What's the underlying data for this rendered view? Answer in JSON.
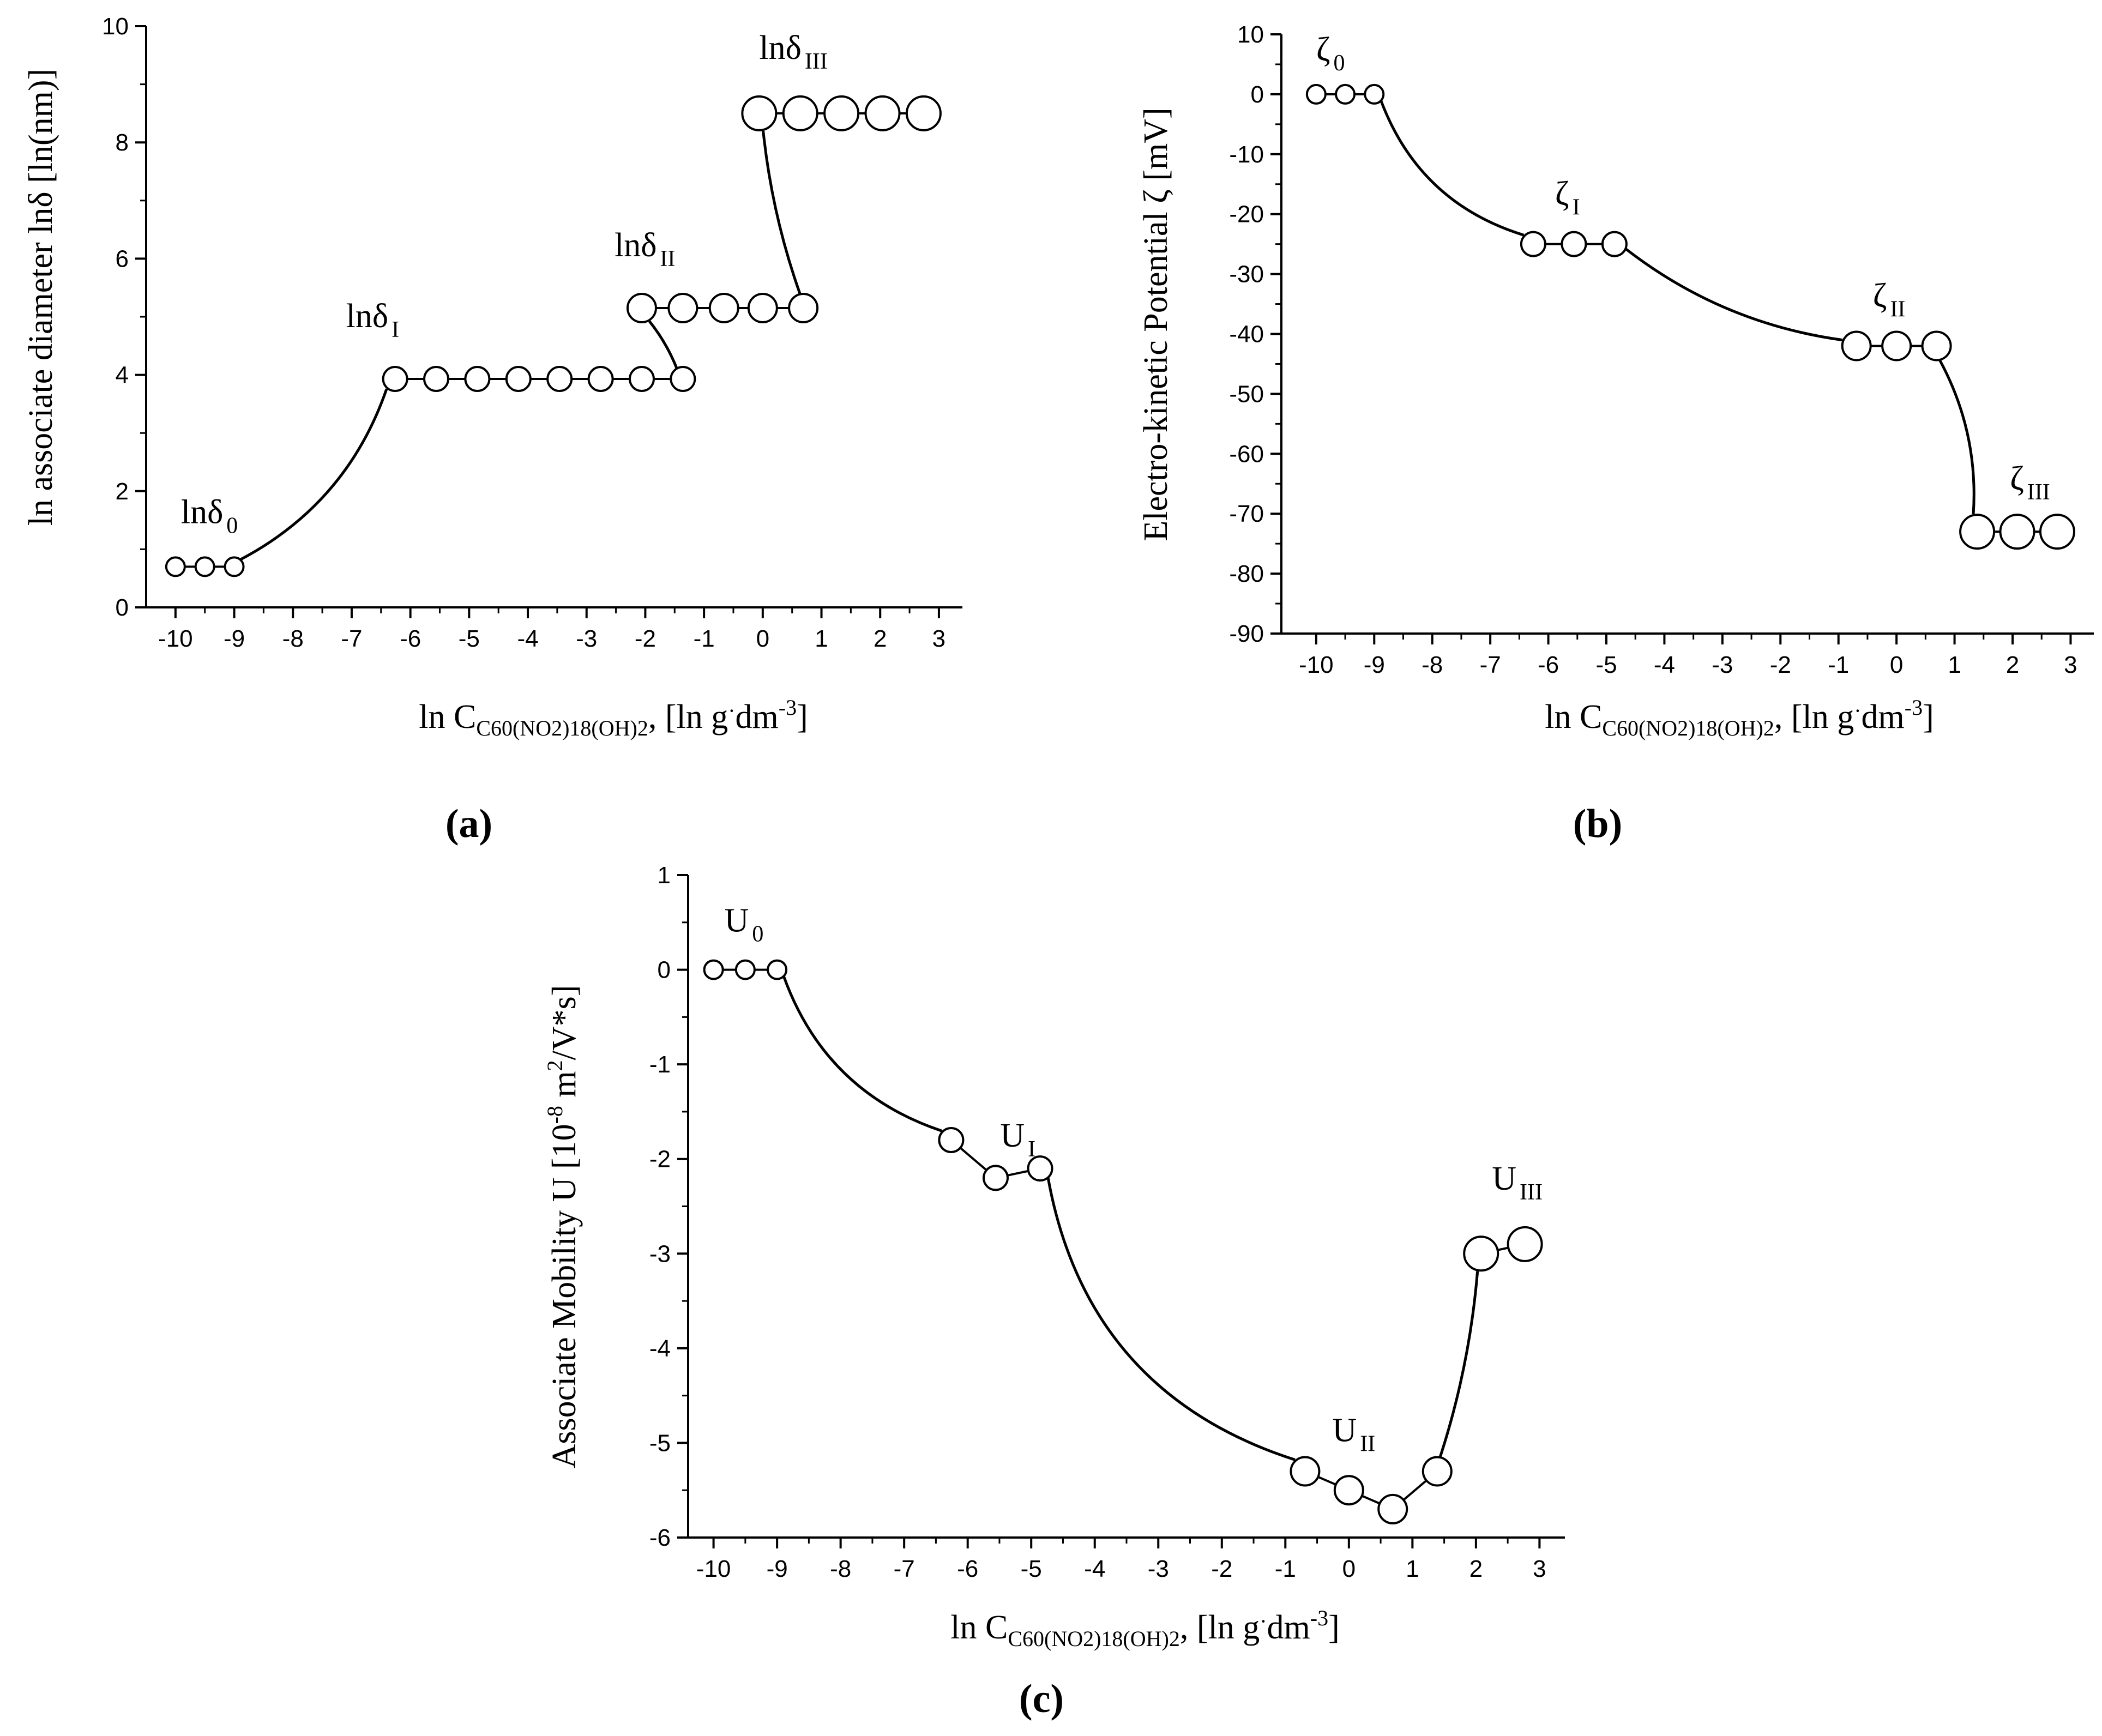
{
  "chart_data": [
    {
      "type": "scatter",
      "panel": "(a)",
      "xlabel": {
        "pre": "ln C",
        "sub": "C60(NO2)18(OH)2",
        "post": ", [ln g",
        "dot": "·",
        "post2": "dm",
        "sup": "-3",
        "end": "]"
      },
      "ylabel": "ln associate diameter  lnδ [ln(nm)]",
      "xlim": [
        -10.5,
        3.4
      ],
      "ylim": [
        0,
        10
      ],
      "xticks": [
        -10,
        -9,
        -8,
        -7,
        -6,
        -5,
        -4,
        -3,
        -2,
        -1,
        0,
        1,
        2,
        3
      ],
      "yticks": [
        0,
        2,
        4,
        6,
        8,
        10
      ],
      "groups": [
        {
          "name": "lnδ0",
          "label": "lnδ",
          "sub": "0",
          "size": "small",
          "x": [
            -10,
            -9.5,
            -9
          ],
          "y": [
            0.7,
            0.7,
            0.7
          ]
        },
        {
          "name": "lnδI",
          "label": "lnδ",
          "sub": "I",
          "size": "medium",
          "x": [
            -6.26,
            -5.56,
            -4.86,
            -4.16,
            -3.46,
            -2.76,
            -2.06,
            -1.36
          ],
          "y": [
            3.93,
            3.93,
            3.93,
            3.93,
            3.93,
            3.93,
            3.93,
            3.93
          ]
        },
        {
          "name": "lnδII",
          "label": "lnδ",
          "sub": "II",
          "size": "large",
          "x": [
            -2.06,
            -1.36,
            -0.66,
            0,
            0.69
          ],
          "y": [
            5.15,
            5.15,
            5.15,
            5.15,
            5.15
          ]
        },
        {
          "name": "lnδIII",
          "label": "lnδ",
          "sub": "III",
          "size": "xlarge",
          "x": [
            -0.06,
            0.64,
            1.34,
            2.04,
            2.74
          ],
          "y": [
            8.5,
            8.5,
            8.5,
            8.5,
            8.5
          ]
        }
      ]
    },
    {
      "type": "scatter",
      "panel": "(b)",
      "xlabel": {
        "pre": "ln C",
        "sub": "C60(NO2)18(OH)2",
        "post": ", [ln g",
        "dot": "·",
        "post2": "dm",
        "sup": "-3",
        "end": "]"
      },
      "ylabel": "Electro-kinetic Potential  ζ [mV]",
      "xlim": [
        -10.6,
        3.4
      ],
      "ylim": [
        -90,
        10
      ],
      "xticks": [
        -10,
        -9,
        -8,
        -7,
        -6,
        -5,
        -4,
        -3,
        -2,
        -1,
        0,
        1,
        2,
        3
      ],
      "yticks": [
        10,
        0,
        -10,
        -20,
        -30,
        -40,
        -50,
        -60,
        -70,
        -80,
        -90
      ],
      "groups": [
        {
          "name": "ζ0",
          "label": "ζ",
          "sub": "0",
          "size": "small",
          "x": [
            -10,
            -9.5,
            -9
          ],
          "y": [
            0,
            0,
            0
          ]
        },
        {
          "name": "ζI",
          "label": "ζ",
          "sub": "I",
          "size": "medium",
          "x": [
            -6.26,
            -5.56,
            -4.86
          ],
          "y": [
            -25,
            -25,
            -25
          ]
        },
        {
          "name": "ζII",
          "label": "ζ",
          "sub": "II",
          "size": "large",
          "x": [
            -0.69,
            0,
            0.69
          ],
          "y": [
            -42,
            -42,
            -42
          ]
        },
        {
          "name": "ζIII",
          "label": "ζ",
          "sub": "III",
          "size": "xlarge",
          "x": [
            1.39,
            2.08,
            2.77
          ],
          "y": [
            -73,
            -73,
            -73
          ]
        }
      ]
    },
    {
      "type": "scatter",
      "panel": "(c)",
      "xlabel": {
        "pre": "ln C",
        "sub": "C60(NO2)18(OH)2",
        "post": ", [ln g",
        "dot": "·",
        "post2": "dm",
        "sup": "-3",
        "end": "]"
      },
      "ylabel": {
        "pre": "Associate Mobility  U [10",
        "sup1": "-8",
        "mid": " m",
        "sup2": "2",
        "end": "/V*s]"
      },
      "xlim": [
        -10.4,
        3.4
      ],
      "ylim": [
        -6,
        1
      ],
      "xticks": [
        -10,
        -9,
        -8,
        -7,
        -6,
        -5,
        -4,
        -3,
        -2,
        -1,
        0,
        1,
        2,
        3
      ],
      "yticks": [
        1,
        0,
        -1,
        -2,
        -3,
        -4,
        -5,
        -6
      ],
      "groups": [
        {
          "name": "U0",
          "label": "U",
          "sub": "0",
          "size": "small",
          "x": [
            -10,
            -9.5,
            -9
          ],
          "y": [
            0,
            0,
            0
          ]
        },
        {
          "name": "UI",
          "label": "U",
          "sub": "I",
          "size": "medium",
          "x": [
            -6.26,
            -5.56,
            -4.86
          ],
          "y": [
            -1.8,
            -2.2,
            -2.1
          ]
        },
        {
          "name": "UII",
          "label": "U",
          "sub": "II",
          "size": "large",
          "x": [
            -0.69,
            0,
            0.69,
            1.39
          ],
          "y": [
            -5.3,
            -5.5,
            -5.7,
            -5.3
          ]
        },
        {
          "name": "UIII",
          "label": "U",
          "sub": "III",
          "size": "xlarge",
          "x": [
            2.08,
            2.77
          ],
          "y": [
            -3.0,
            -2.9
          ]
        }
      ]
    }
  ]
}
